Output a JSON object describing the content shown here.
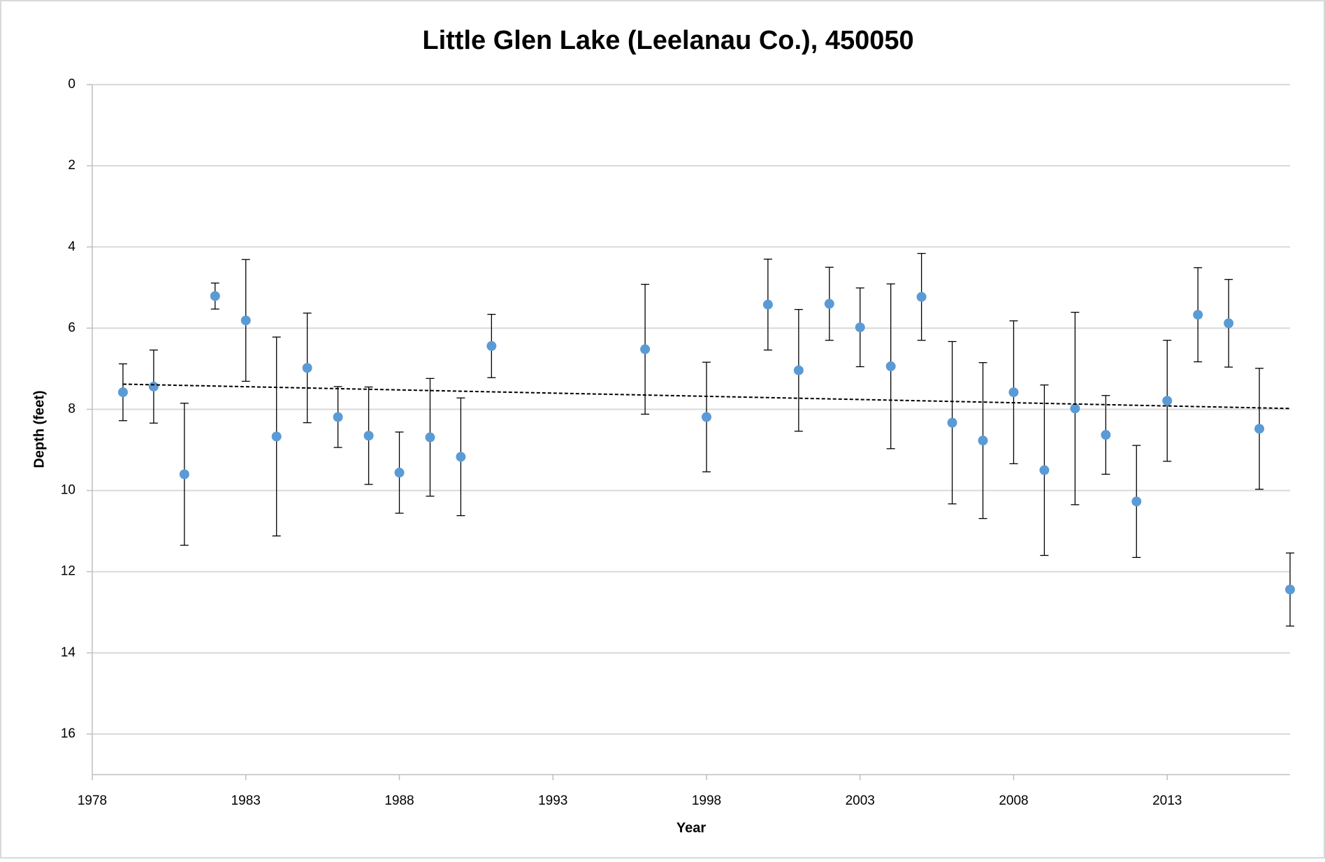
{
  "chart_data": {
    "type": "scatter",
    "title": "Little Glen Lake (Leelanau Co.), 450050",
    "x_label": "Year",
    "y_label": "Depth (feet)",
    "xlim": [
      1978,
      2017
    ],
    "xticks": [
      1978,
      1983,
      1988,
      1993,
      1998,
      2003,
      2008,
      2013
    ],
    "ylim": [
      0,
      17
    ],
    "yticks": [
      0,
      2,
      4,
      6,
      8,
      10,
      12,
      14,
      16
    ],
    "y_inverted": true,
    "grid": true,
    "series": [
      {
        "color": "#5b9bd5",
        "x": [
          1979,
          1980,
          1981,
          1982,
          1983,
          1984,
          1985,
          1986,
          1987,
          1988,
          1989,
          1990,
          1991,
          1996,
          1998,
          2000,
          2001,
          2002,
          2003,
          2004,
          2005,
          2006,
          2007,
          2008,
          2009,
          2010,
          2011,
          2012,
          2013,
          2014,
          2015,
          2016,
          2017
        ],
        "values": [
          7.58,
          7.44,
          9.6,
          5.21,
          5.81,
          8.67,
          6.98,
          8.19,
          8.65,
          9.56,
          8.69,
          9.17,
          6.44,
          6.52,
          8.19,
          5.42,
          7.04,
          5.4,
          5.98,
          6.94,
          5.23,
          8.33,
          8.77,
          7.58,
          9.5,
          7.98,
          8.63,
          10.27,
          7.79,
          5.67,
          5.88,
          8.48,
          12.44
        ],
        "errors": [
          0.7,
          0.9,
          1.75,
          0.32,
          1.5,
          2.45,
          1.35,
          0.75,
          1.2,
          1.0,
          1.45,
          1.45,
          0.78,
          1.6,
          1.35,
          1.12,
          1.5,
          0.9,
          0.97,
          2.03,
          1.07,
          2.0,
          1.92,
          1.76,
          2.1,
          2.37,
          0.97,
          1.38,
          1.49,
          1.16,
          1.08,
          1.49,
          0.9
        ]
      }
    ],
    "trendline": {
      "color": "#000000",
      "x": [
        1979,
        2017
      ],
      "values": [
        7.38,
        7.98
      ]
    }
  }
}
